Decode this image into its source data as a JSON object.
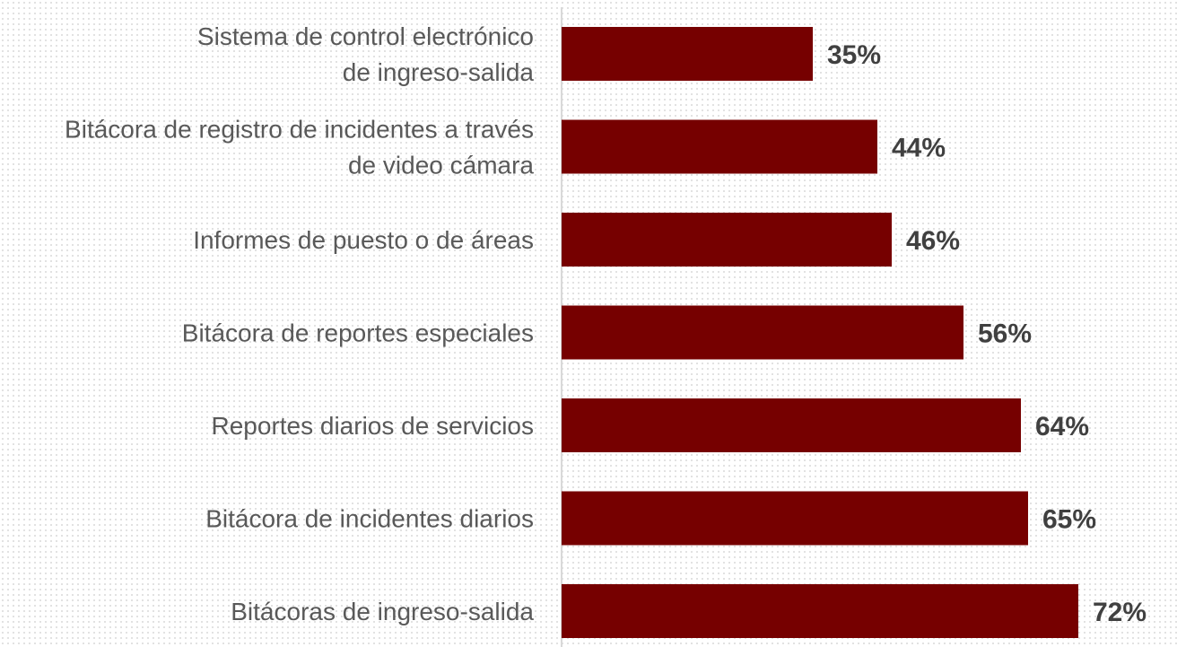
{
  "chart_data": {
    "type": "bar",
    "orientation": "horizontal",
    "categories": [
      [
        "Sistema de control electrónico",
        "de ingreso-salida"
      ],
      [
        "Bitácora de registro de incidentes a través",
        "de video cámara"
      ],
      [
        "Informes de puesto o de áreas"
      ],
      [
        "Bitácora de reportes especiales"
      ],
      [
        "Reportes diarios de servicios"
      ],
      [
        "Bitácora de incidentes diarios"
      ],
      [
        "Bitácoras de ingreso-salida"
      ]
    ],
    "values": [
      35,
      44,
      46,
      56,
      64,
      65,
      72
    ],
    "value_labels": [
      "35%",
      "44%",
      "46%",
      "56%",
      "64%",
      "65%",
      "72%"
    ],
    "unit": "%",
    "xlim": [
      0,
      100
    ],
    "grid": false,
    "legend": "none",
    "colors": {
      "bar": "#760000",
      "axis": "#d9d9d9"
    }
  }
}
